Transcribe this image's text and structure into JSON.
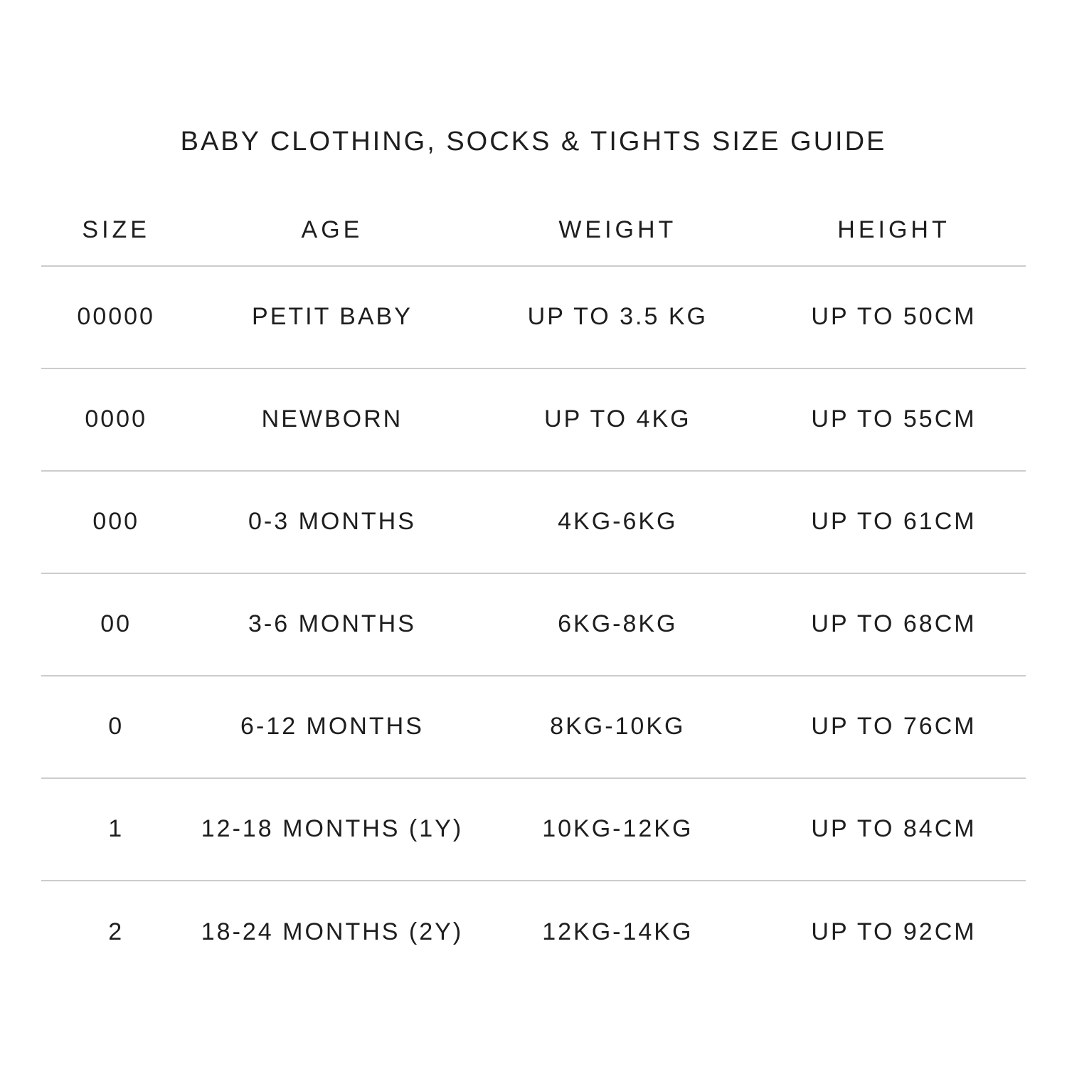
{
  "chart_data": {
    "type": "table",
    "title": "BABY CLOTHING, SOCKS & TIGHTS SIZE GUIDE",
    "columns": [
      "SIZE",
      "AGE",
      "WEIGHT",
      "HEIGHT"
    ],
    "rows": [
      [
        "00000",
        "PETIT BABY",
        "UP TO 3.5 KG",
        "UP TO 50CM"
      ],
      [
        "0000",
        "NEWBORN",
        "UP TO 4KG",
        "UP TO 55CM"
      ],
      [
        "000",
        "0-3 MONTHS",
        "4KG-6KG",
        "UP TO 61CM"
      ],
      [
        "00",
        "3-6 MONTHS",
        "6KG-8KG",
        "UP TO 68CM"
      ],
      [
        "0",
        "6-12 MONTHS",
        "8KG-10KG",
        "UP TO 76CM"
      ],
      [
        "1",
        "12-18 MONTHS (1Y)",
        "10KG-12KG",
        "UP TO 84CM"
      ],
      [
        "2",
        "18-24 MONTHS (2Y)",
        "12KG-14KG",
        "UP TO 92CM"
      ]
    ],
    "layout_hints": {
      "grid": "horizontal row dividers only",
      "alignment": "all columns centered",
      "legend": "none"
    },
    "colors": {
      "background": "#ffffff",
      "text": "#1e1e1e",
      "divider": "#cccccc"
    }
  }
}
